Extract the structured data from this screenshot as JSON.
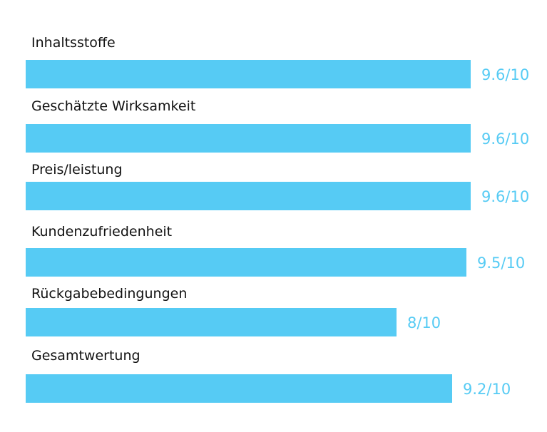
{
  "chart_data": {
    "type": "bar",
    "orientation": "horizontal",
    "title": "",
    "xlabel": "",
    "ylabel": "",
    "xlim": [
      0,
      10
    ],
    "grid": false,
    "legend": "none",
    "bar_color": "#56cbf4",
    "categories": [
      "Inhaltsstoffe",
      "Geschätzte Wirksamkeit",
      "Preis/leistung",
      "Kundenzufriedenheit",
      "Rückgabebedingungen",
      "Gesamtwertung"
    ],
    "values": [
      9.6,
      9.6,
      9.6,
      9.5,
      8,
      9.2
    ],
    "value_labels": [
      "9.6/10",
      "9.6/10",
      "9.6/10",
      "9.5/10",
      "8/10",
      "9.2/10"
    ]
  }
}
